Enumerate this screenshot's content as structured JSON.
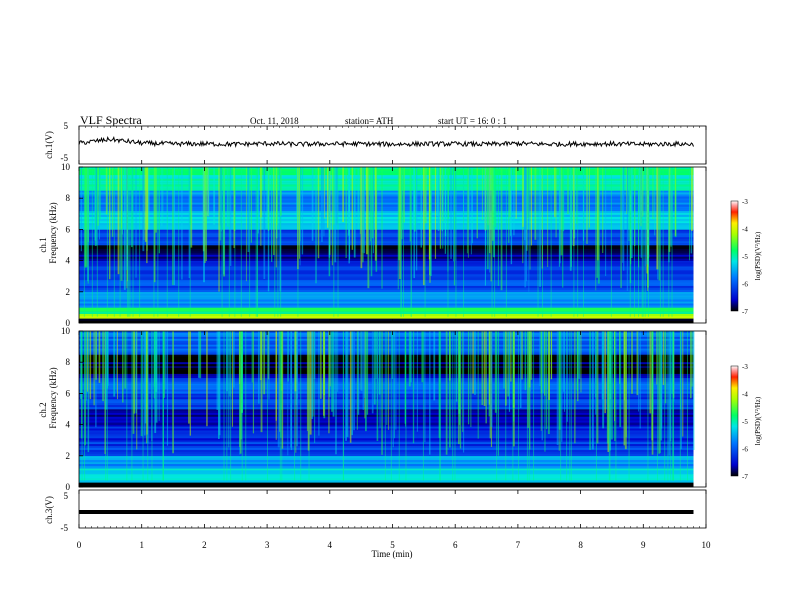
{
  "header": {
    "title": "VLF  Spectra",
    "date": "Oct. 11, 2018",
    "station": "station= ATH",
    "start_ut": "start  UT  =    16: 0  : 1"
  },
  "panels": {
    "ch1_wave": {
      "ylabel": "ch.1(V)",
      "ticks": [
        "5",
        "-5"
      ]
    },
    "ch1_spec": {
      "ylabel_top": "ch.1",
      "ylabel": "Frequency (kHz)",
      "ticks": [
        "10",
        "8",
        "6",
        "4",
        "2",
        "0"
      ]
    },
    "ch2_spec": {
      "ylabel_top": "ch.2",
      "ylabel": "Frequency (kHz)",
      "ticks": [
        "10",
        "8",
        "6",
        "4",
        "2",
        "0"
      ]
    },
    "ch3_wave": {
      "ylabel": "ch.3(V)",
      "ticks": [
        "5",
        "-5"
      ]
    }
  },
  "xaxis": {
    "label": "Time  (min)",
    "ticks": [
      "0",
      "1",
      "2",
      "3",
      "4",
      "5",
      "6",
      "7",
      "8",
      "9",
      "10"
    ]
  },
  "colorbar": {
    "label": "log(PSD)(V²/Hz)",
    "ticks": [
      "-3",
      "-4",
      "-5",
      "-6",
      "-7"
    ]
  },
  "colors": {
    "trace": "#000000",
    "background": "#ffffff"
  },
  "chart_data": [
    {
      "type": "line",
      "title": "ch.1(V)",
      "ylabel": "ch.1(V)",
      "xlabel": "Time  (min)",
      "xlim": [
        0,
        10
      ],
      "ylim": [
        -5,
        5
      ],
      "series": [
        {
          "x": [
            0,
            0.5,
            1,
            1.5,
            2,
            2.5,
            3,
            3.5,
            4,
            4.5,
            5,
            5.5,
            6,
            6.5,
            7,
            7.5,
            8,
            8.5,
            9,
            9.5,
            9.8
          ],
          "values": [
            0.5,
            1.5,
            0.5,
            0.3,
            0.3,
            0.2,
            0.4,
            0.2,
            0.3,
            0.3,
            0.2,
            0.3,
            0.3,
            0.2,
            0.4,
            0.2,
            0.3,
            0.3,
            0.2,
            0.3,
            0.2
          ]
        }
      ]
    },
    {
      "type": "heatmap",
      "title": "ch.1",
      "ylabel": "Frequency (kHz)",
      "xlim": [
        0,
        10
      ],
      "ylim": [
        0,
        10
      ],
      "time_end": 9.8,
      "colorbar_range": [
        -7,
        -3
      ],
      "bands": [
        {
          "f0": 0,
          "f1": 0.3,
          "log_psd": -7
        },
        {
          "f0": 0.3,
          "f1": 0.6,
          "log_psd": -4.3
        },
        {
          "f0": 0.6,
          "f1": 1,
          "log_psd": -4.8
        },
        {
          "f0": 1,
          "f1": 2,
          "log_psd": -5.7
        },
        {
          "f0": 2,
          "f1": 3,
          "log_psd": -6.1
        },
        {
          "f0": 3,
          "f1": 4,
          "log_psd": -6.3
        },
        {
          "f0": 4,
          "f1": 5,
          "log_psd": -6.8
        },
        {
          "f0": 5,
          "f1": 6,
          "log_psd": -6.2
        },
        {
          "f0": 6,
          "f1": 7.2,
          "log_psd": -5.3
        },
        {
          "f0": 7.2,
          "f1": 8.5,
          "log_psd": -5.7
        },
        {
          "f0": 8.5,
          "f1": 9.5,
          "log_psd": -5.1
        },
        {
          "f0": 9.5,
          "f1": 10,
          "log_psd": -4.8
        }
      ]
    },
    {
      "type": "heatmap",
      "title": "ch.2",
      "ylabel": "Frequency (kHz)",
      "xlim": [
        0,
        10
      ],
      "ylim": [
        0,
        10
      ],
      "time_end": 9.8,
      "colorbar_range": [
        -7,
        -3
      ],
      "bands": [
        {
          "f0": 0,
          "f1": 0.3,
          "log_psd": -7
        },
        {
          "f0": 0.3,
          "f1": 1.2,
          "log_psd": -5.2
        },
        {
          "f0": 1.2,
          "f1": 2,
          "log_psd": -5.6
        },
        {
          "f0": 2,
          "f1": 3,
          "log_psd": -6.2
        },
        {
          "f0": 3,
          "f1": 4,
          "log_psd": -6.4
        },
        {
          "f0": 4,
          "f1": 5,
          "log_psd": -6.7
        },
        {
          "f0": 5,
          "f1": 6,
          "log_psd": -6.2
        },
        {
          "f0": 6,
          "f1": 7,
          "log_psd": -6.0
        },
        {
          "f0": 7,
          "f1": 8.5,
          "log_psd": -6.8
        },
        {
          "f0": 8.5,
          "f1": 10,
          "log_psd": -5.9
        }
      ]
    },
    {
      "type": "line",
      "title": "ch.3(V)",
      "ylabel": "ch.3(V)",
      "xlabel": "Time  (min)",
      "xlim": [
        0,
        10
      ],
      "ylim": [
        -5,
        5
      ],
      "series": [
        {
          "x": [
            0,
            9.8
          ],
          "values": [
            -0.8,
            -0.8
          ]
        }
      ]
    }
  ]
}
